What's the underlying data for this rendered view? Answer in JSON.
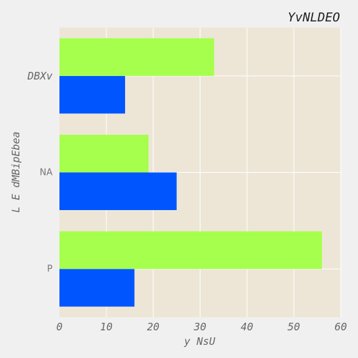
{
  "chart_data": {
    "type": "bar",
    "orientation": "horizontal",
    "title": "YvNLDEO",
    "xlabel": "y NsU",
    "ylabel": "L E dMBipEbea",
    "categories": [
      "P",
      "NA",
      "DBXv"
    ],
    "series": [
      {
        "values": [
          16,
          25,
          14
        ],
        "color": "#0055ff"
      },
      {
        "values": [
          56,
          19,
          33
        ],
        "color": "#a6ff4d"
      }
    ],
    "xlim": [
      0,
      60
    ],
    "xticks": [
      0,
      10,
      20,
      30,
      40,
      50,
      60
    ],
    "grid": true,
    "legend": "none",
    "background": "#ede6d6",
    "page_background": "#f0f0f0"
  }
}
